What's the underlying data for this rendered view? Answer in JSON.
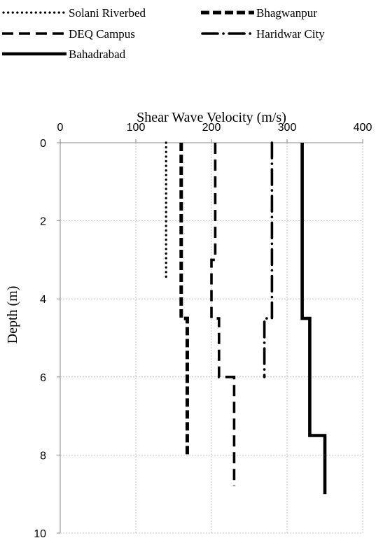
{
  "chart_data": {
    "type": "line",
    "x_axis_title": "Shear Wave Velocity (m/s)",
    "y_axis_title": "Depth (m)",
    "x_ticks": [
      "0",
      "100",
      "200",
      "300",
      "400"
    ],
    "y_ticks": [
      "0",
      "2",
      "4",
      "6",
      "8",
      "10"
    ],
    "xlim": [
      0,
      400
    ],
    "ylim": [
      0,
      10
    ],
    "y_inverted": true,
    "x_axis_position": "top",
    "grid": true,
    "legend_position": "top",
    "series": [
      {
        "name": "Solani Riverbed",
        "style": "dotted",
        "points": [
          [
            140,
            0
          ],
          [
            140,
            3.5
          ]
        ]
      },
      {
        "name": "Bhagwanpur",
        "style": "dashed",
        "points": [
          [
            160,
            0
          ],
          [
            160,
            4.5
          ],
          [
            168,
            4.5
          ],
          [
            168,
            8
          ]
        ]
      },
      {
        "name": "DEQ Campus",
        "style": "long-dash",
        "points": [
          [
            205,
            0
          ],
          [
            205,
            3
          ],
          [
            200,
            3
          ],
          [
            200,
            4.5
          ],
          [
            210,
            4.5
          ],
          [
            210,
            6
          ],
          [
            230,
            6
          ],
          [
            230,
            8.8
          ]
        ]
      },
      {
        "name": "Haridwar City",
        "style": "dash-dot",
        "points": [
          [
            280,
            0
          ],
          [
            280,
            4.5
          ],
          [
            270,
            4.5
          ],
          [
            270,
            6
          ]
        ]
      },
      {
        "name": "Bahadrabad",
        "style": "solid",
        "points": [
          [
            320,
            0
          ],
          [
            320,
            4.5
          ],
          [
            330,
            4.5
          ],
          [
            330,
            7.5
          ],
          [
            350,
            7.5
          ],
          [
            350,
            9
          ]
        ]
      }
    ]
  }
}
